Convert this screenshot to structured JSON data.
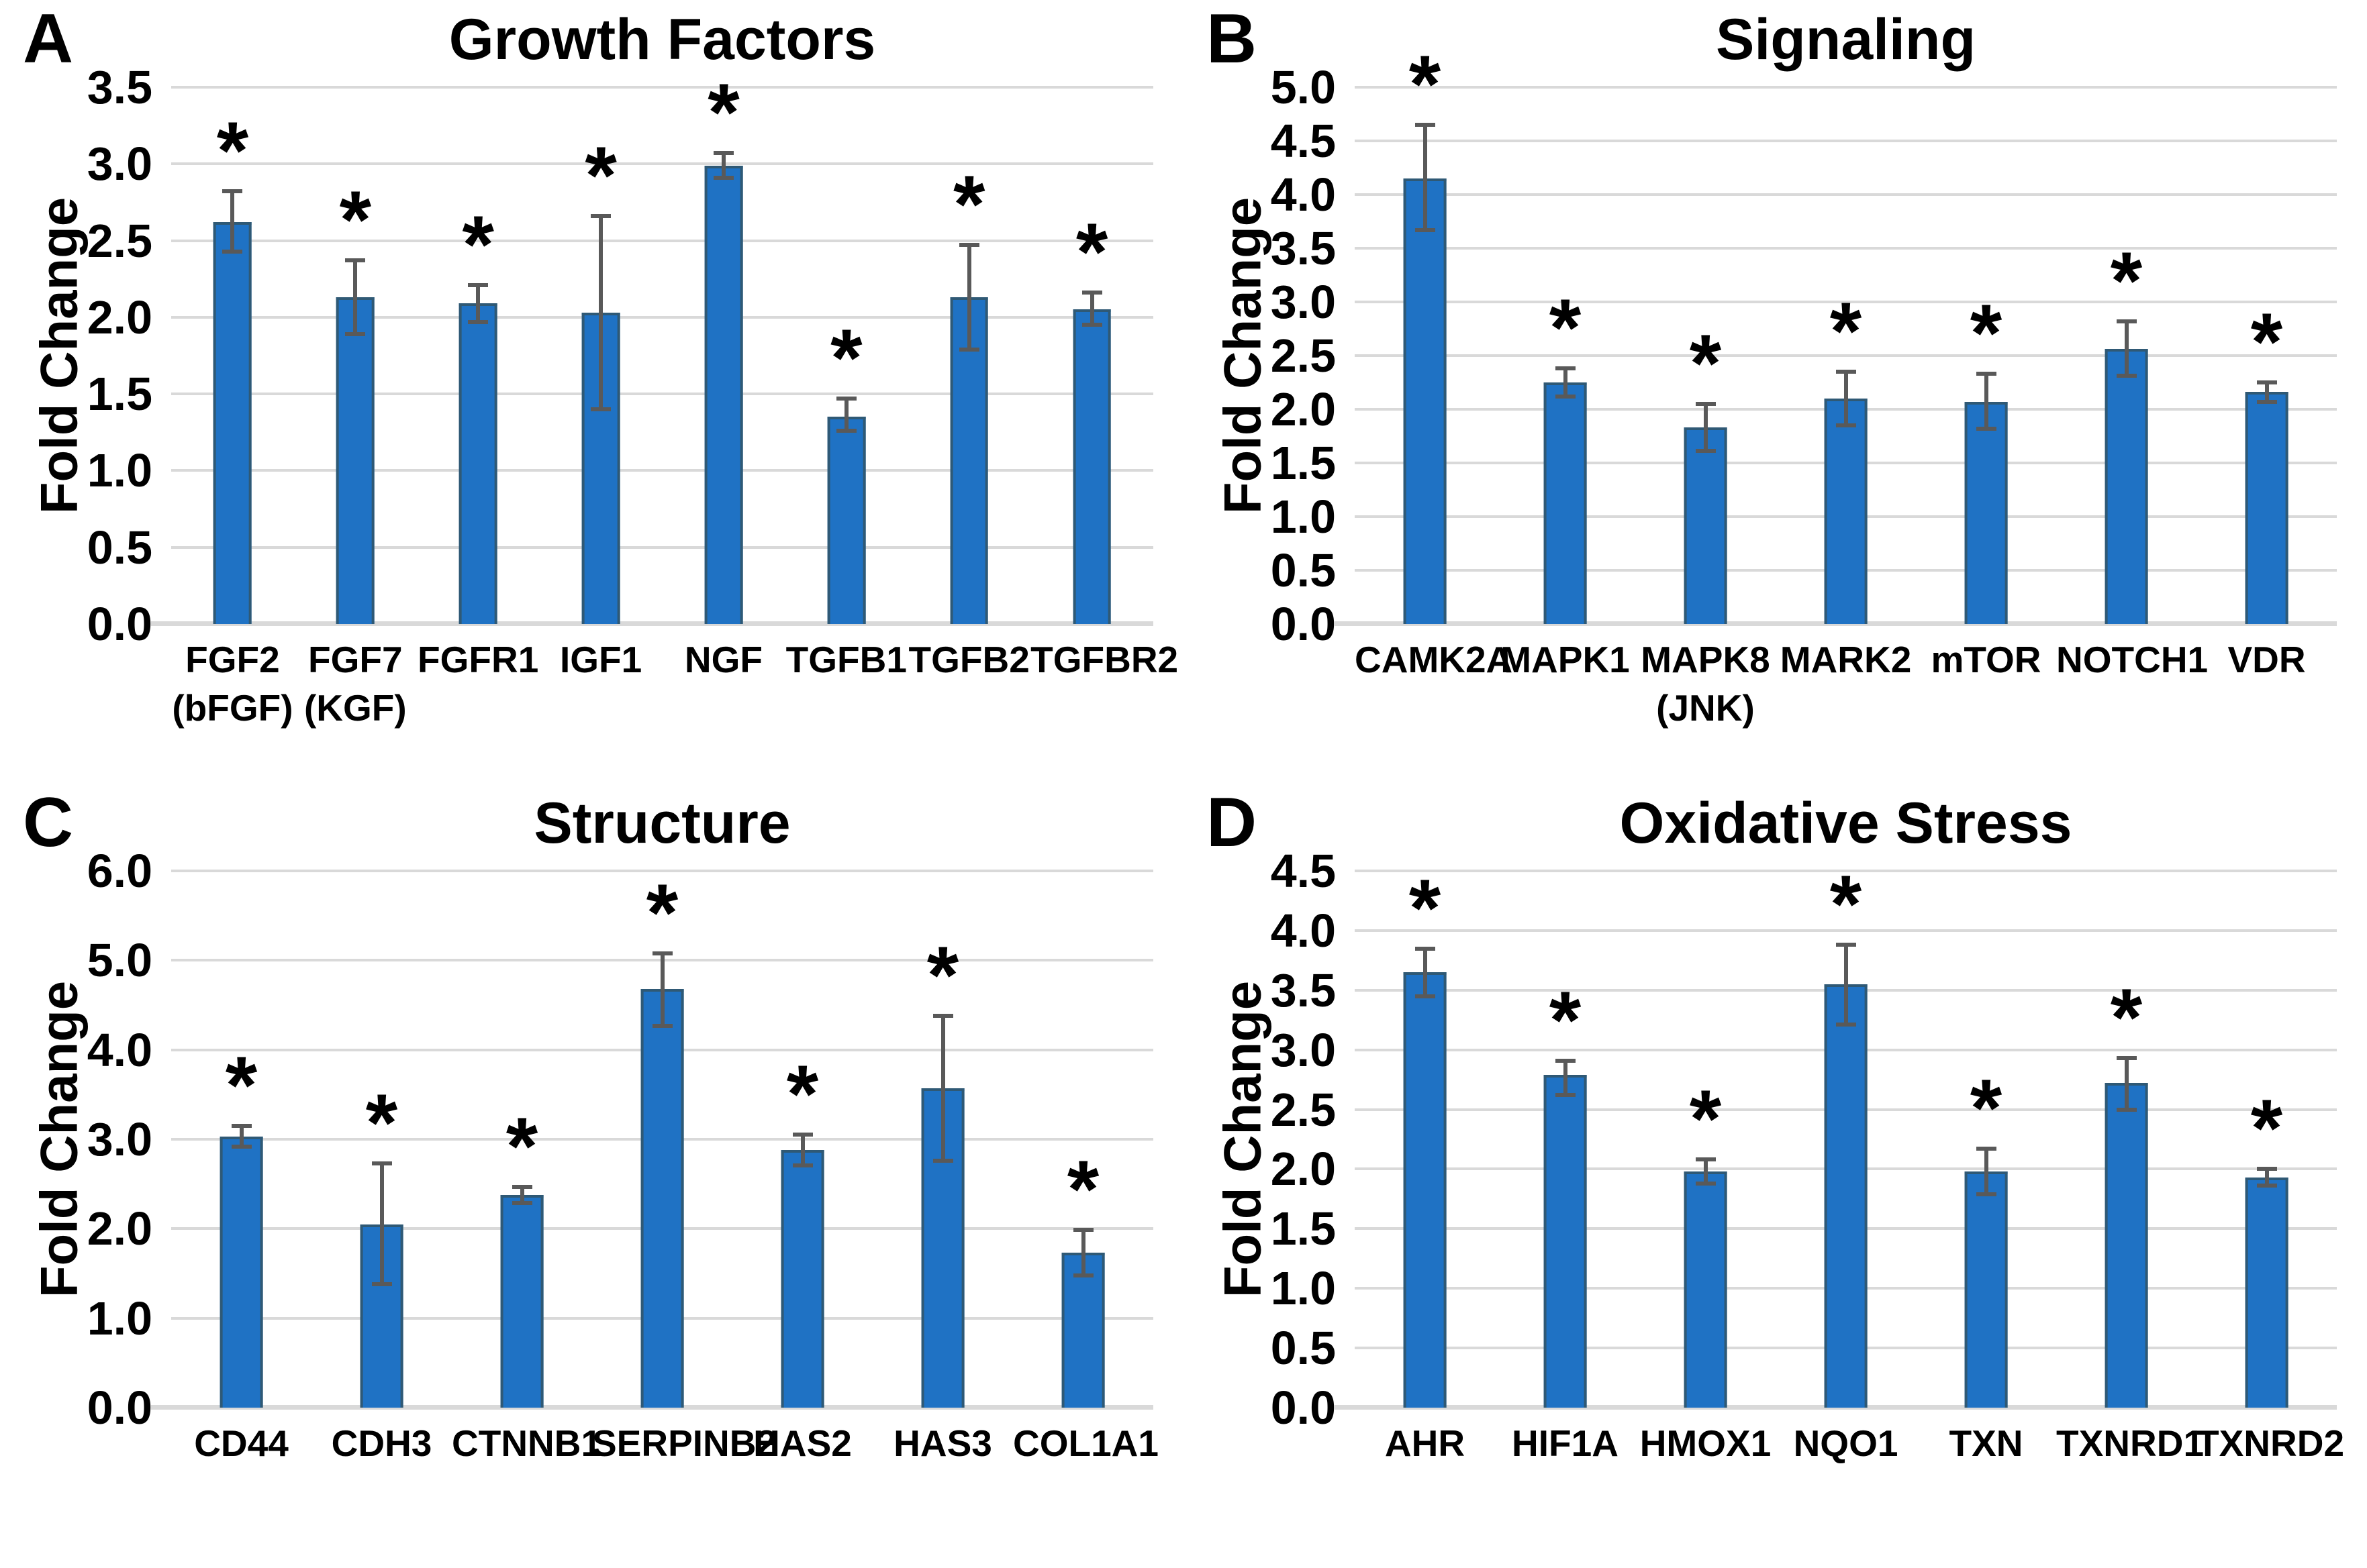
{
  "figure_title": "Gene expression fold change bar charts",
  "colors": {
    "bar_fill": "#1f72c4",
    "bar_border": "#2f5975",
    "error_bar": "#595959",
    "gridline": "#d9d9d9",
    "text": "#000000",
    "background": "#ffffff"
  },
  "significance_symbol": "*",
  "chart_data": [
    {
      "type": "bar",
      "panel_letter": "A",
      "title": "Growth Factors",
      "ylabel": "Fold Change",
      "ylim": [
        0,
        3.5
      ],
      "ystep": 0.5,
      "grid": true,
      "legend": null,
      "categories": [
        "FGF2",
        "FGF7",
        "FGFR1",
        "IGF1",
        "NGF",
        "TGFB1",
        "TGFB2",
        "TGFBR2"
      ],
      "category_sublabels": [
        "(bFGF)",
        "(KGF)",
        "",
        "",
        "",
        "",
        "",
        ""
      ],
      "values": [
        2.62,
        2.13,
        2.09,
        2.03,
        2.99,
        1.35,
        2.13,
        2.05
      ],
      "error_low": [
        2.43,
        1.89,
        1.97,
        1.4,
        2.91,
        1.26,
        1.79,
        1.95
      ],
      "error_high": [
        2.82,
        2.37,
        2.21,
        2.66,
        3.07,
        1.47,
        2.47,
        2.16
      ],
      "significance": [
        "*",
        "*",
        "*",
        "*",
        "*",
        "*",
        "*",
        "*"
      ]
    },
    {
      "type": "bar",
      "panel_letter": "B",
      "title": "Signaling",
      "ylabel": "Fold Change",
      "ylim": [
        0,
        5.0
      ],
      "ystep": 0.5,
      "grid": true,
      "legend": null,
      "categories": [
        "CAMK2A",
        "MAPK1",
        "MAPK8",
        "MARK2",
        "mTOR",
        "NOTCH1",
        "VDR"
      ],
      "category_sublabels": [
        "",
        "",
        "(JNK)",
        "",
        "",
        "",
        ""
      ],
      "values": [
        4.15,
        2.25,
        1.83,
        2.1,
        2.07,
        2.56,
        2.16
      ],
      "error_low": [
        3.67,
        2.12,
        1.61,
        1.85,
        1.82,
        2.31,
        2.07
      ],
      "error_high": [
        4.65,
        2.38,
        2.05,
        2.35,
        2.33,
        2.82,
        2.25
      ],
      "significance": [
        "*",
        "*",
        "*",
        "*",
        "*",
        "*",
        "*"
      ]
    },
    {
      "type": "bar",
      "panel_letter": "C",
      "title": "Structure",
      "ylabel": "Fold Change",
      "ylim": [
        0,
        6.0
      ],
      "ystep": 1.0,
      "grid": true,
      "legend": null,
      "categories": [
        "CD44",
        "CDH3",
        "CTNNB1",
        "SERPINB2",
        "HAS2",
        "HAS3",
        "COL1A1"
      ],
      "category_sublabels": [
        "",
        "",
        "",
        "",
        "",
        "",
        ""
      ],
      "values": [
        3.03,
        2.05,
        2.38,
        4.68,
        2.88,
        3.57,
        1.73
      ],
      "error_low": [
        2.92,
        1.38,
        2.29,
        4.27,
        2.71,
        2.76,
        1.48
      ],
      "error_high": [
        3.15,
        2.73,
        2.47,
        5.08,
        3.05,
        4.38,
        1.99
      ],
      "significance": [
        "*",
        "*",
        "*",
        "*",
        "*",
        "*",
        "*"
      ]
    },
    {
      "type": "bar",
      "panel_letter": "D",
      "title": "Oxidative Stress",
      "ylabel": "Fold Change",
      "ylim": [
        0,
        4.5
      ],
      "ystep": 0.5,
      "grid": true,
      "legend": null,
      "categories": [
        "AHR",
        "HIF1A",
        "HMOX1",
        "NQO1",
        "TXN",
        "TXNRD1",
        "TXNRD2"
      ],
      "category_sublabels": [
        "",
        "",
        "",
        "",
        "",
        "",
        ""
      ],
      "values": [
        3.65,
        2.79,
        1.98,
        3.55,
        1.98,
        2.72,
        1.93
      ],
      "error_low": [
        3.45,
        2.62,
        1.88,
        3.21,
        1.79,
        2.5,
        1.86
      ],
      "error_high": [
        3.85,
        2.91,
        2.08,
        3.88,
        2.17,
        2.93,
        2.0
      ],
      "significance": [
        "*",
        "*",
        "*",
        "*",
        "*",
        "*",
        "*"
      ]
    }
  ]
}
